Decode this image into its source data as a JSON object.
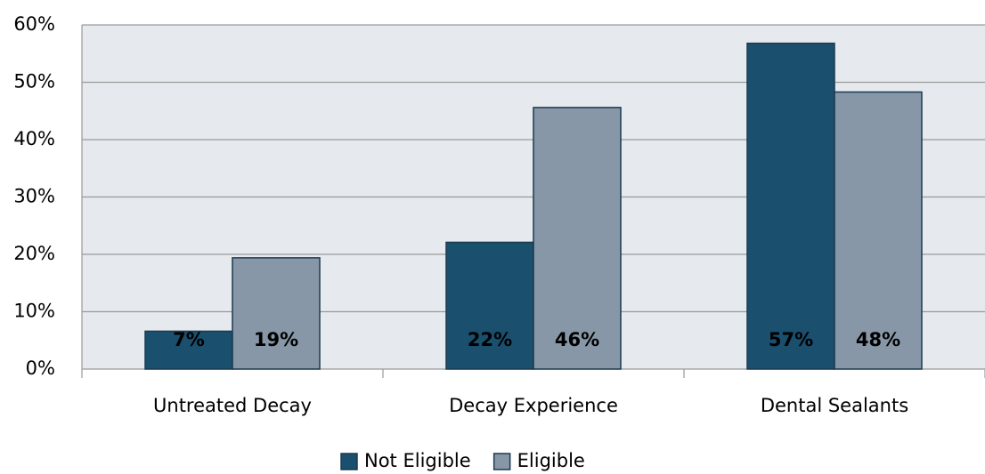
{
  "chart_data": {
    "type": "bar",
    "categories": [
      "Untreated Decay",
      "Decay Experience",
      "Dental Sealants"
    ],
    "series": [
      {
        "name": "Not Eligible",
        "color": "#1b4f6e",
        "values": [
          6.6,
          22.1,
          56.8
        ],
        "value_labels": [
          "7%",
          "22%",
          "57%"
        ]
      },
      {
        "name": "Eligible",
        "color": "#8797a7",
        "values": [
          19.4,
          45.6,
          48.3
        ],
        "value_labels": [
          "19%",
          "46%",
          "48%"
        ]
      }
    ],
    "ylim": [
      0,
      60
    ],
    "yticks": [
      {
        "value": 0,
        "label": "0%"
      },
      {
        "value": 10,
        "label": "10%"
      },
      {
        "value": 20,
        "label": "20%"
      },
      {
        "value": 30,
        "label": "30%"
      },
      {
        "value": 40,
        "label": "40%"
      },
      {
        "value": 50,
        "label": "50%"
      },
      {
        "value": 60,
        "label": "60%"
      }
    ],
    "grid": true,
    "legend": "bottom"
  }
}
